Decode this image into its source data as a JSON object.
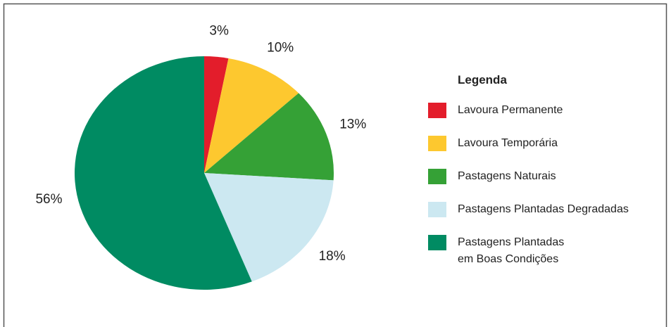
{
  "chart_data": {
    "type": "pie",
    "categories": [
      "Lavoura Permanente",
      "Lavoura Temporária",
      "Pastagens Naturais",
      "Pastagens Plantadas Degradadas",
      "Pastagens Plantadas\nem Boas Condições"
    ],
    "values": [
      3,
      10,
      13,
      18,
      56
    ],
    "value_labels": [
      "3%",
      "10%",
      "13%",
      "18%",
      "56%"
    ],
    "colors": [
      "#e31d2b",
      "#fdc82f",
      "#35a136",
      "#cce8f1",
      "#008b62"
    ],
    "legend_title": "Legenda",
    "legend": "right"
  }
}
